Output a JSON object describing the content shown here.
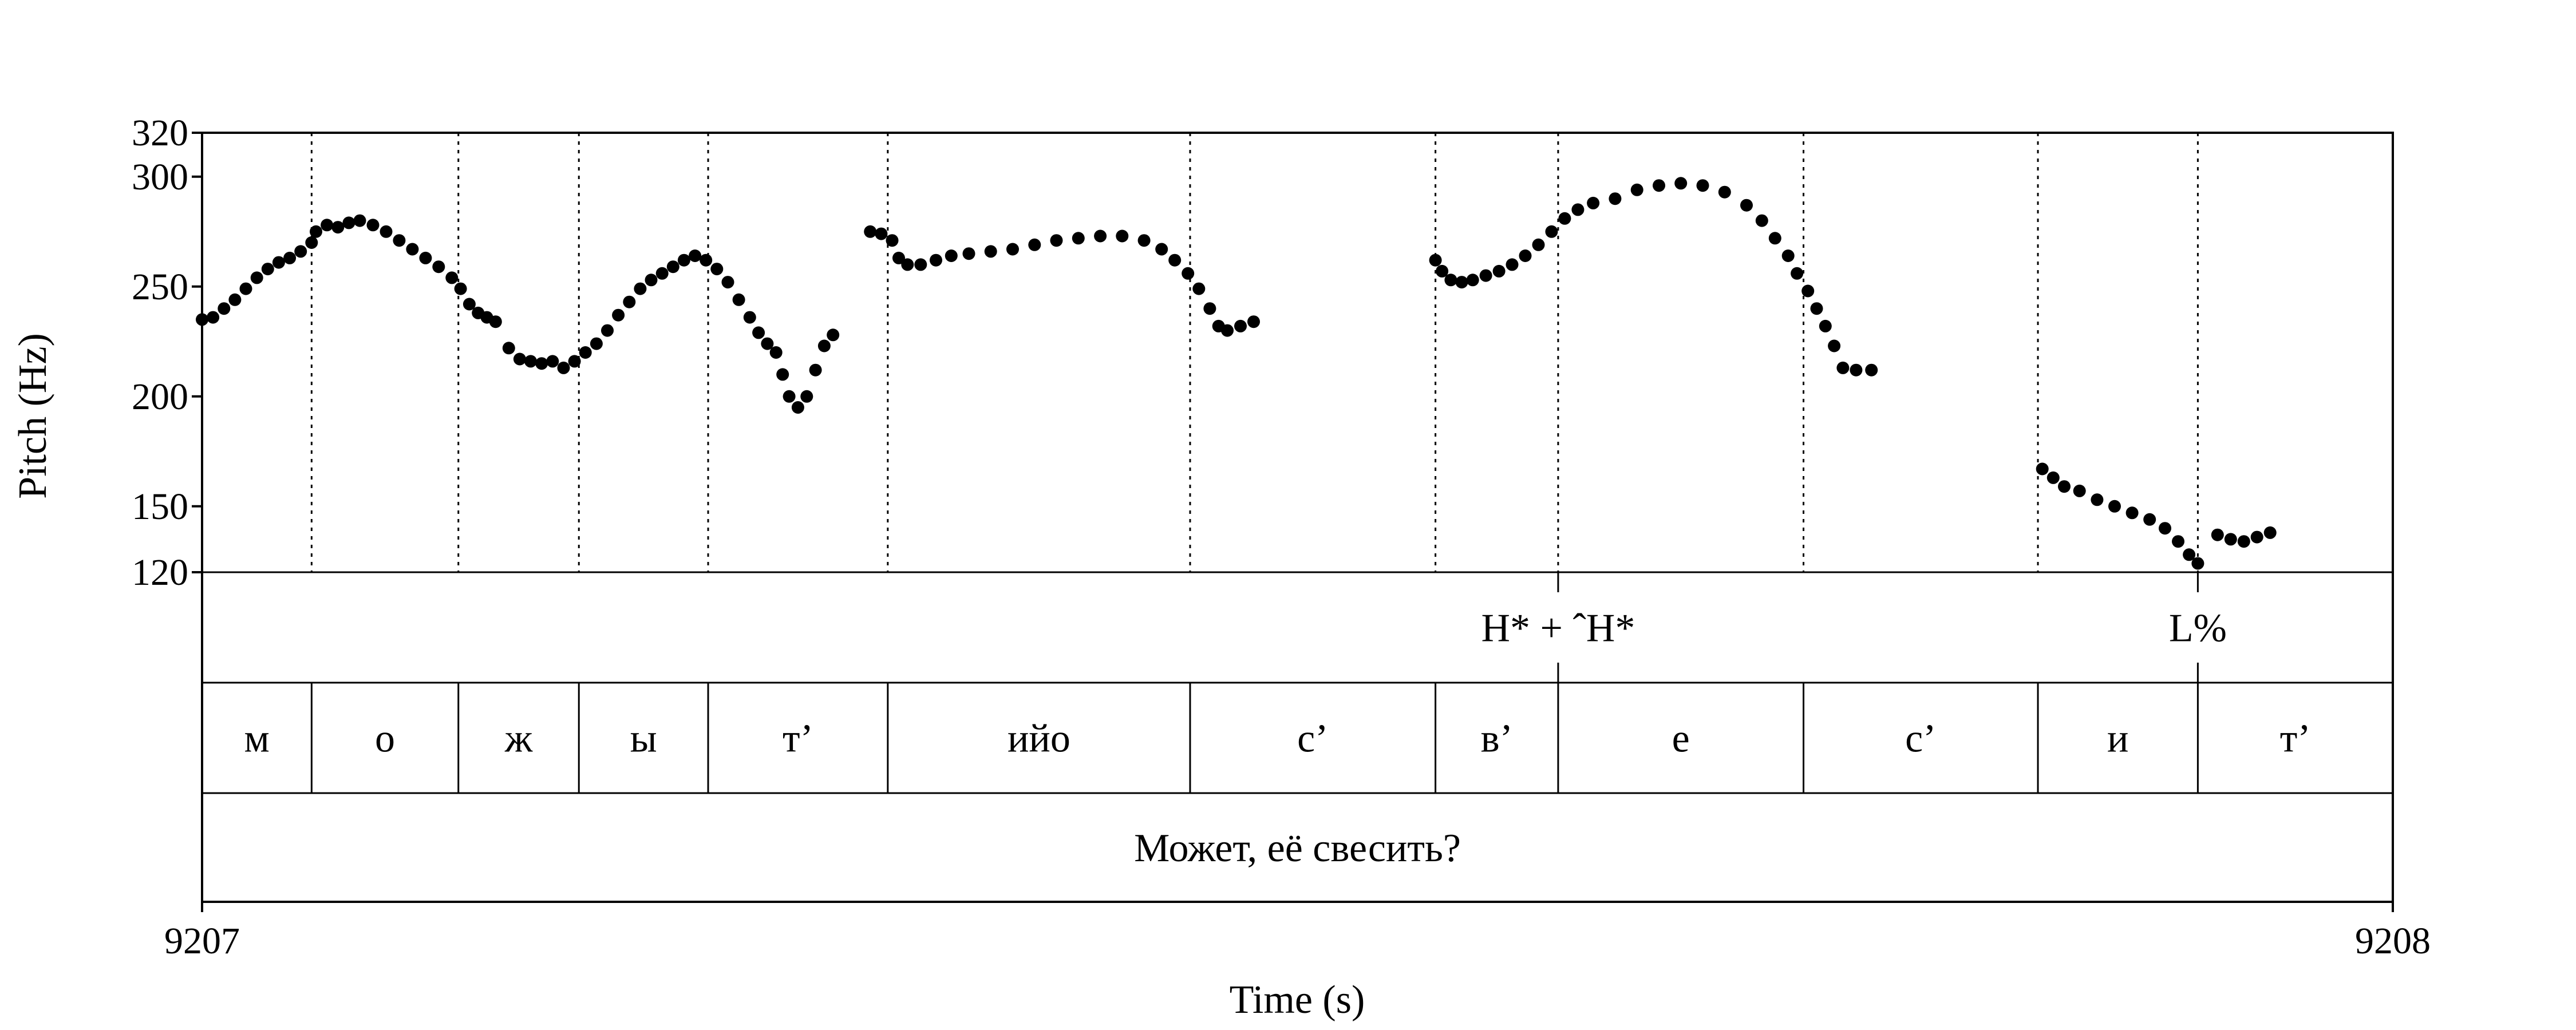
{
  "chart_data": {
    "type": "scatter",
    "xlabel": "Time (s)",
    "ylabel": "Pitch (Hz)",
    "xlim": [
      9207,
      9208
    ],
    "ylim": [
      120,
      320
    ],
    "x_tick_labels": [
      "9207",
      "9208"
    ],
    "y_ticks": [
      120,
      150,
      200,
      250,
      300,
      320
    ],
    "y_tick_labels": [
      "120",
      "150",
      "200",
      "250",
      "300",
      "320"
    ],
    "boundaries": [
      9207.05,
      9207.117,
      9207.172,
      9207.231,
      9207.313,
      9207.451,
      9207.563,
      9207.619,
      9207.731,
      9207.838,
      9207.911
    ],
    "tones": [
      {
        "time": 9207.619,
        "label": "H* + ˆH*"
      },
      {
        "time": 9207.911,
        "label": "L%"
      }
    ],
    "segments": [
      {
        "start": 9207.0,
        "end": 9207.05,
        "label": "м"
      },
      {
        "start": 9207.05,
        "end": 9207.117,
        "label": "о"
      },
      {
        "start": 9207.117,
        "end": 9207.172,
        "label": "ж"
      },
      {
        "start": 9207.172,
        "end": 9207.231,
        "label": "ы"
      },
      {
        "start": 9207.231,
        "end": 9207.313,
        "label": "т’"
      },
      {
        "start": 9207.313,
        "end": 9207.451,
        "label": "ийо"
      },
      {
        "start": 9207.451,
        "end": 9207.563,
        "label": "с’"
      },
      {
        "start": 9207.563,
        "end": 9207.619,
        "label": "в’"
      },
      {
        "start": 9207.619,
        "end": 9207.731,
        "label": "е"
      },
      {
        "start": 9207.731,
        "end": 9207.838,
        "label": "с’"
      },
      {
        "start": 9207.838,
        "end": 9207.911,
        "label": "и"
      },
      {
        "start": 9207.911,
        "end": 9208.0,
        "label": "т’"
      }
    ],
    "sentence": "Может, её свесить?",
    "series": [
      {
        "points": [
          [
            9207.0,
            235
          ],
          [
            9207.005,
            236
          ],
          [
            9207.01,
            240
          ],
          [
            9207.015,
            244
          ],
          [
            9207.02,
            249
          ],
          [
            9207.025,
            254
          ],
          [
            9207.03,
            258
          ],
          [
            9207.035,
            261
          ],
          [
            9207.04,
            263
          ],
          [
            9207.045,
            266
          ],
          [
            9207.05,
            270
          ],
          [
            9207.052,
            275
          ],
          [
            9207.057,
            278
          ],
          [
            9207.062,
            277
          ],
          [
            9207.067,
            279
          ],
          [
            9207.072,
            280
          ],
          [
            9207.078,
            278
          ],
          [
            9207.084,
            275
          ],
          [
            9207.09,
            271
          ],
          [
            9207.096,
            267
          ],
          [
            9207.102,
            263
          ],
          [
            9207.108,
            259
          ],
          [
            9207.114,
            254
          ],
          [
            9207.118,
            249
          ],
          [
            9207.122,
            242
          ],
          [
            9207.126,
            238
          ],
          [
            9207.13,
            236
          ],
          [
            9207.134,
            234
          ],
          [
            9207.14,
            222
          ],
          [
            9207.145,
            217
          ],
          [
            9207.15,
            216
          ],
          [
            9207.155,
            215
          ],
          [
            9207.16,
            216
          ],
          [
            9207.165,
            213
          ],
          [
            9207.17,
            216
          ],
          [
            9207.175,
            220
          ],
          [
            9207.18,
            224
          ],
          [
            9207.185,
            230
          ],
          [
            9207.19,
            237
          ],
          [
            9207.195,
            243
          ],
          [
            9207.2,
            249
          ],
          [
            9207.205,
            253
          ],
          [
            9207.21,
            256
          ],
          [
            9207.215,
            259
          ],
          [
            9207.22,
            262
          ],
          [
            9207.225,
            264
          ],
          [
            9207.23,
            262
          ],
          [
            9207.235,
            258
          ],
          [
            9207.24,
            252
          ],
          [
            9207.245,
            244
          ],
          [
            9207.25,
            236
          ],
          [
            9207.254,
            229
          ],
          [
            9207.258,
            224
          ],
          [
            9207.262,
            220
          ],
          [
            9207.265,
            210
          ],
          [
            9207.268,
            200
          ],
          [
            9207.272,
            195
          ],
          [
            9207.276,
            200
          ],
          [
            9207.28,
            212
          ],
          [
            9207.284,
            223
          ],
          [
            9207.288,
            228
          ],
          [
            9207.305,
            275
          ],
          [
            9207.31,
            274
          ],
          [
            9207.315,
            271
          ],
          [
            9207.318,
            263
          ],
          [
            9207.322,
            260
          ],
          [
            9207.328,
            260
          ],
          [
            9207.335,
            262
          ],
          [
            9207.342,
            264
          ],
          [
            9207.35,
            265
          ],
          [
            9207.36,
            266
          ],
          [
            9207.37,
            267
          ],
          [
            9207.38,
            269
          ],
          [
            9207.39,
            271
          ],
          [
            9207.4,
            272
          ],
          [
            9207.41,
            273
          ],
          [
            9207.42,
            273
          ],
          [
            9207.43,
            271
          ],
          [
            9207.438,
            267
          ],
          [
            9207.444,
            262
          ],
          [
            9207.45,
            256
          ],
          [
            9207.455,
            249
          ],
          [
            9207.46,
            240
          ],
          [
            9207.464,
            232
          ],
          [
            9207.468,
            230
          ],
          [
            9207.474,
            232
          ],
          [
            9207.48,
            234
          ],
          [
            9207.563,
            262
          ],
          [
            9207.566,
            257
          ],
          [
            9207.57,
            253
          ],
          [
            9207.575,
            252
          ],
          [
            9207.58,
            253
          ],
          [
            9207.586,
            255
          ],
          [
            9207.592,
            257
          ],
          [
            9207.598,
            260
          ],
          [
            9207.604,
            264
          ],
          [
            9207.61,
            269
          ],
          [
            9207.616,
            275
          ],
          [
            9207.622,
            281
          ],
          [
            9207.628,
            285
          ],
          [
            9207.635,
            288
          ],
          [
            9207.645,
            290
          ],
          [
            9207.655,
            294
          ],
          [
            9207.665,
            296
          ],
          [
            9207.675,
            297
          ],
          [
            9207.685,
            296
          ],
          [
            9207.695,
            293
          ],
          [
            9207.705,
            287
          ],
          [
            9207.712,
            280
          ],
          [
            9207.718,
            272
          ],
          [
            9207.724,
            264
          ],
          [
            9207.728,
            256
          ],
          [
            9207.733,
            248
          ],
          [
            9207.737,
            240
          ],
          [
            9207.741,
            232
          ],
          [
            9207.745,
            223
          ],
          [
            9207.749,
            213
          ],
          [
            9207.755,
            212
          ],
          [
            9207.762,
            212
          ]
        ]
      },
      {
        "points": [
          [
            9207.84,
            167
          ],
          [
            9207.845,
            163
          ],
          [
            9207.85,
            159
          ],
          [
            9207.857,
            157
          ],
          [
            9207.865,
            153
          ],
          [
            9207.873,
            150
          ],
          [
            9207.881,
            147
          ],
          [
            9207.889,
            144
          ],
          [
            9207.896,
            140
          ],
          [
            9207.902,
            134
          ],
          [
            9207.907,
            128
          ],
          [
            9207.911,
            124
          ],
          [
            9207.92,
            137
          ],
          [
            9207.926,
            135
          ],
          [
            9207.932,
            134
          ],
          [
            9207.938,
            136
          ],
          [
            9207.944,
            138
          ]
        ]
      }
    ]
  }
}
